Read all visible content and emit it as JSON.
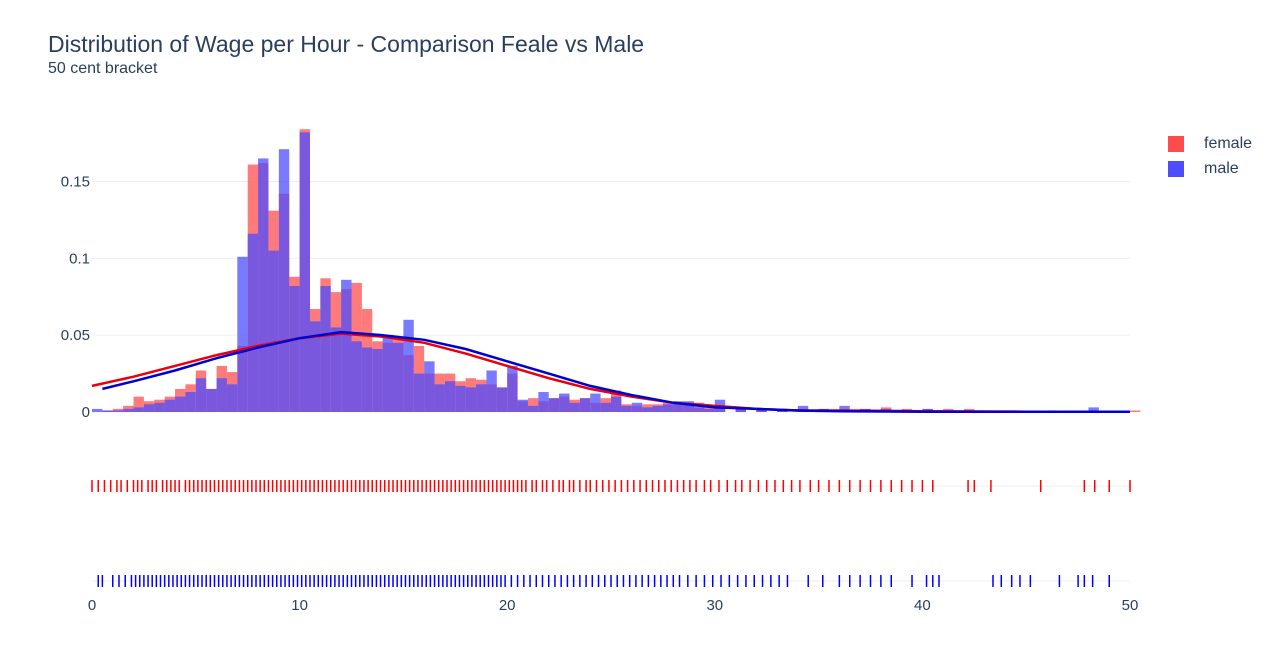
{
  "chart_data": {
    "type": "histogram",
    "title": "Distribution of Wage per Hour - Comparison Feale vs Male",
    "subtitle": "50 cent bracket",
    "xlabel": "",
    "ylabel": "",
    "xlim": [
      0,
      50
    ],
    "ylim": [
      0,
      0.19
    ],
    "x_ticks": [
      0,
      10,
      20,
      30,
      40,
      50
    ],
    "y_ticks": [
      {
        "value": 0,
        "label": "0"
      },
      {
        "value": 0.05,
        "label": "0.05"
      },
      {
        "value": 0.1,
        "label": "0.1"
      },
      {
        "value": 0.15,
        "label": "0.15"
      }
    ],
    "bin_width": 0.5,
    "grid": true,
    "legend_position": "top-right",
    "series": [
      {
        "name": "female",
        "color": "#ff4d4d",
        "curve_color": "#e8000b",
        "rug_color": "#ff0000",
        "bin_starts": [
          0.5,
          1,
          1.5,
          2,
          2.5,
          3,
          3.5,
          4,
          4.5,
          5,
          5.5,
          6,
          6.5,
          7,
          7.5,
          8,
          8.5,
          9,
          9.5,
          10,
          10.5,
          11,
          11.5,
          12,
          12.5,
          13,
          13.5,
          14,
          14.5,
          15,
          15.5,
          16,
          16.5,
          17,
          17.5,
          18,
          18.5,
          19,
          19.5,
          20,
          20.5,
          21,
          21.5,
          22,
          22.5,
          23,
          23.5,
          24,
          24.5,
          25,
          25.5,
          26,
          26.5,
          27,
          27.5,
          28,
          28.5,
          29,
          29.5,
          30,
          31,
          32,
          33,
          34,
          35,
          36,
          37,
          38,
          39,
          40,
          41,
          42,
          44,
          46,
          48,
          50
        ],
        "values": [
          0.001,
          0.002,
          0.004,
          0.01,
          0.007,
          0.008,
          0.01,
          0.015,
          0.018,
          0.027,
          0.015,
          0.03,
          0.026,
          0.043,
          0.161,
          0.162,
          0.131,
          0.142,
          0.088,
          0.184,
          0.067,
          0.087,
          0.078,
          0.08,
          0.084,
          0.067,
          0.046,
          0.045,
          0.049,
          0.037,
          0.043,
          0.025,
          0.025,
          0.025,
          0.02,
          0.022,
          0.021,
          0.018,
          0.016,
          0.025,
          0.007,
          0.009,
          0.007,
          0.009,
          0.01,
          0.008,
          0.009,
          0.006,
          0.009,
          0.014,
          0.005,
          0.004,
          0.005,
          0.005,
          0.006,
          0.006,
          0.005,
          0.006,
          0.004,
          0.003,
          0.003,
          0.002,
          0.002,
          0.002,
          0.002,
          0.002,
          0.002,
          0.003,
          0.002,
          0.002,
          0.002,
          0.002,
          0.001,
          0.001,
          0.001,
          0.001
        ]
      },
      {
        "name": "male",
        "color": "#4d4dff",
        "curve_color": "#0000d0",
        "rug_color": "#0000ff",
        "bin_starts": [
          0,
          0.5,
          1,
          1.5,
          2,
          2.5,
          3,
          3.5,
          4,
          4.5,
          5,
          5.5,
          6,
          6.5,
          7,
          7.5,
          8,
          8.5,
          9,
          9.5,
          10,
          10.5,
          11,
          11.5,
          12,
          12.5,
          13,
          13.5,
          14,
          14.5,
          15,
          15.5,
          16,
          16.5,
          17,
          17.5,
          18,
          18.5,
          19,
          19.5,
          20,
          20.5,
          21,
          21.5,
          22,
          22.5,
          23,
          23.5,
          24,
          24.5,
          25,
          25.5,
          26,
          26.5,
          27,
          27.5,
          28,
          28.5,
          29,
          29.5,
          30,
          31,
          32,
          33,
          34,
          35,
          36,
          37,
          38,
          39,
          40,
          41,
          42,
          44,
          46,
          48
        ],
        "values": [
          0.002,
          0.001,
          0.001,
          0.002,
          0.003,
          0.005,
          0.006,
          0.008,
          0.01,
          0.013,
          0.022,
          0.015,
          0.022,
          0.018,
          0.101,
          0.116,
          0.165,
          0.105,
          0.171,
          0.082,
          0.182,
          0.059,
          0.082,
          0.055,
          0.086,
          0.046,
          0.042,
          0.041,
          0.05,
          0.045,
          0.06,
          0.025,
          0.033,
          0.018,
          0.02,
          0.017,
          0.016,
          0.018,
          0.027,
          0.016,
          0.03,
          0.008,
          0.004,
          0.013,
          0.009,
          0.012,
          0.006,
          0.009,
          0.012,
          0.006,
          0.01,
          0.004,
          0.006,
          0.003,
          0.004,
          0.005,
          0.007,
          0.007,
          0.003,
          0.002,
          0.008,
          0.002,
          0.002,
          0.002,
          0.004,
          0.002,
          0.004,
          0.002,
          0.002,
          0.001,
          0.002,
          0.001,
          0.001,
          0.001,
          0.001,
          0.003
        ]
      }
    ],
    "curves": [
      {
        "name": "female",
        "x": [
          0,
          2,
          4,
          6,
          8,
          10,
          12,
          14,
          16,
          18,
          20,
          22,
          24,
          26,
          28,
          30,
          32,
          34,
          36,
          40,
          45,
          50
        ],
        "y": [
          0.017,
          0.023,
          0.03,
          0.037,
          0.043,
          0.048,
          0.051,
          0.049,
          0.045,
          0.038,
          0.03,
          0.022,
          0.015,
          0.01,
          0.006,
          0.004,
          0.002,
          0.001,
          0.001,
          0.0005,
          0.0002,
          0.0001
        ]
      },
      {
        "name": "male",
        "x": [
          0.5,
          2,
          4,
          6,
          8,
          10,
          12,
          14,
          16,
          18,
          20,
          22,
          24,
          26,
          28,
          30,
          32,
          34,
          36,
          40,
          45,
          50
        ],
        "y": [
          0.015,
          0.02,
          0.027,
          0.035,
          0.042,
          0.048,
          0.052,
          0.05,
          0.047,
          0.041,
          0.033,
          0.025,
          0.017,
          0.011,
          0.006,
          0.003,
          0.002,
          0.001,
          0.0005,
          0.0002,
          0.0001,
          0.0001
        ]
      }
    ],
    "rug": [
      {
        "name": "female",
        "x": [
          0,
          0.3,
          0.6,
          0.9,
          1.2,
          1.4,
          1.7,
          2,
          2.2,
          2.4,
          2.7,
          2.9,
          3.1,
          3.4,
          3.6,
          3.8,
          4,
          4.2,
          4.5,
          4.7,
          4.9,
          5.1,
          5.3,
          5.5,
          5.7,
          5.9,
          6.1,
          6.3,
          6.5,
          6.7,
          6.9,
          7.1,
          7.3,
          7.5,
          7.7,
          7.9,
          8.1,
          8.3,
          8.5,
          8.7,
          8.9,
          9.1,
          9.3,
          9.5,
          9.7,
          9.9,
          10.1,
          10.3,
          10.5,
          10.7,
          10.9,
          11.1,
          11.3,
          11.5,
          11.7,
          11.9,
          12.1,
          12.3,
          12.5,
          12.7,
          12.9,
          13.1,
          13.3,
          13.5,
          13.7,
          13.9,
          14.1,
          14.3,
          14.5,
          14.7,
          14.9,
          15.1,
          15.3,
          15.5,
          15.7,
          15.9,
          16.1,
          16.3,
          16.5,
          16.7,
          16.9,
          17.1,
          17.3,
          17.5,
          17.7,
          17.9,
          18.1,
          18.3,
          18.5,
          18.7,
          18.9,
          19.1,
          19.3,
          19.5,
          19.7,
          19.9,
          20.1,
          20.3,
          20.5,
          20.7,
          20.9,
          21.2,
          21.4,
          21.7,
          21.9,
          22.2,
          22.5,
          22.7,
          23,
          23.2,
          23.5,
          23.8,
          24,
          24.3,
          24.6,
          24.9,
          25.2,
          25.5,
          25.8,
          26.1,
          26.4,
          26.7,
          27,
          27.3,
          27.6,
          27.9,
          28.2,
          28.5,
          28.8,
          29.1,
          29.5,
          29.8,
          30.2,
          30.6,
          31,
          31.3,
          31.7,
          32.1,
          32.5,
          32.9,
          33.3,
          33.7,
          34.1,
          34.6,
          35,
          35.5,
          36,
          36.5,
          37,
          37.5,
          38,
          38.5,
          39,
          39.5,
          40,
          40.5,
          42.2,
          42.5,
          43.3,
          45.7,
          47.8,
          48.3,
          49,
          50
        ]
      },
      {
        "name": "male",
        "x": [
          0.3,
          0.5,
          1,
          1.3,
          1.6,
          1.9,
          2.1,
          2.3,
          2.5,
          2.7,
          2.9,
          3.1,
          3.3,
          3.5,
          3.7,
          3.9,
          4.1,
          4.3,
          4.5,
          4.7,
          4.9,
          5.1,
          5.3,
          5.5,
          5.7,
          5.9,
          6.1,
          6.3,
          6.5,
          6.7,
          6.9,
          7.1,
          7.3,
          7.5,
          7.7,
          7.9,
          8.1,
          8.3,
          8.5,
          8.7,
          8.9,
          9.1,
          9.3,
          9.5,
          9.7,
          9.9,
          10.1,
          10.3,
          10.5,
          10.7,
          10.9,
          11.1,
          11.3,
          11.5,
          11.7,
          11.9,
          12.1,
          12.3,
          12.5,
          12.7,
          12.9,
          13.1,
          13.3,
          13.5,
          13.7,
          13.9,
          14.1,
          14.3,
          14.5,
          14.7,
          14.9,
          15.1,
          15.3,
          15.5,
          15.7,
          15.9,
          16.1,
          16.3,
          16.5,
          16.7,
          16.9,
          17.1,
          17.3,
          17.5,
          17.7,
          17.9,
          18.1,
          18.3,
          18.5,
          18.7,
          18.9,
          19.1,
          19.3,
          19.5,
          19.7,
          19.9,
          20.2,
          20.5,
          20.8,
          21.1,
          21.4,
          21.7,
          22,
          22.3,
          22.6,
          22.9,
          23.2,
          23.5,
          23.8,
          24.1,
          24.4,
          24.7,
          25,
          25.3,
          25.6,
          25.9,
          26.2,
          26.5,
          26.8,
          27.1,
          27.4,
          27.7,
          28,
          28.3,
          28.7,
          29.1,
          29.5,
          29.9,
          30.3,
          30.7,
          31.1,
          31.5,
          31.9,
          32.3,
          32.7,
          33.1,
          33.5,
          34.5,
          35.2,
          36,
          36.5,
          37,
          37.5,
          38,
          38.5,
          39.5,
          40.2,
          40.5,
          40.8,
          43.4,
          43.8,
          44.3,
          44.7,
          45.2,
          46.6,
          47.5,
          47.8,
          48.2,
          49
        ]
      }
    ]
  }
}
